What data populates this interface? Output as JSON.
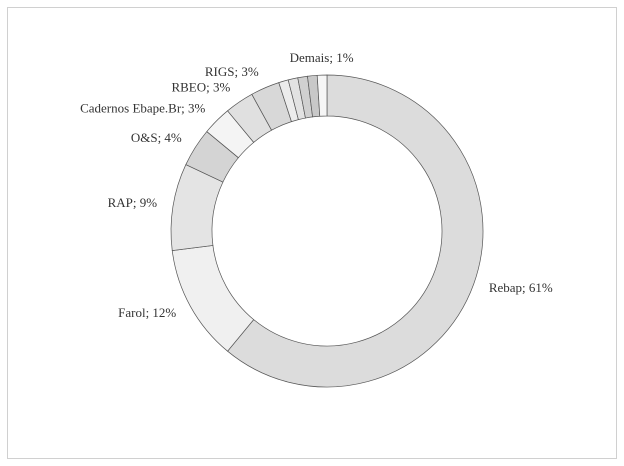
{
  "chart_data": {
    "type": "donut",
    "values": [
      61,
      12,
      9,
      4,
      3,
      3,
      3,
      1,
      1,
      1,
      1,
      1
    ],
    "value_labels": [
      "Rebap; 61%",
      "Farol; 12%",
      "RAP; 9%",
      "O&S; 4%",
      "Cadernos Ebape.Br; 3%",
      "RBEO; 3%",
      "RIGS; 3%",
      null,
      null,
      null,
      null,
      "Demais; 1%"
    ],
    "colors": [
      "#dcdcdc",
      "#f0f0f0",
      "#e4e4e4",
      "#d4d4d4",
      "#f4f4f4",
      "#e0e0e0",
      "#d8d8d8",
      "#ececec",
      "#e2e2e2",
      "#d0d0d0",
      "#c8c8c8",
      "#f6f6f6"
    ]
  }
}
